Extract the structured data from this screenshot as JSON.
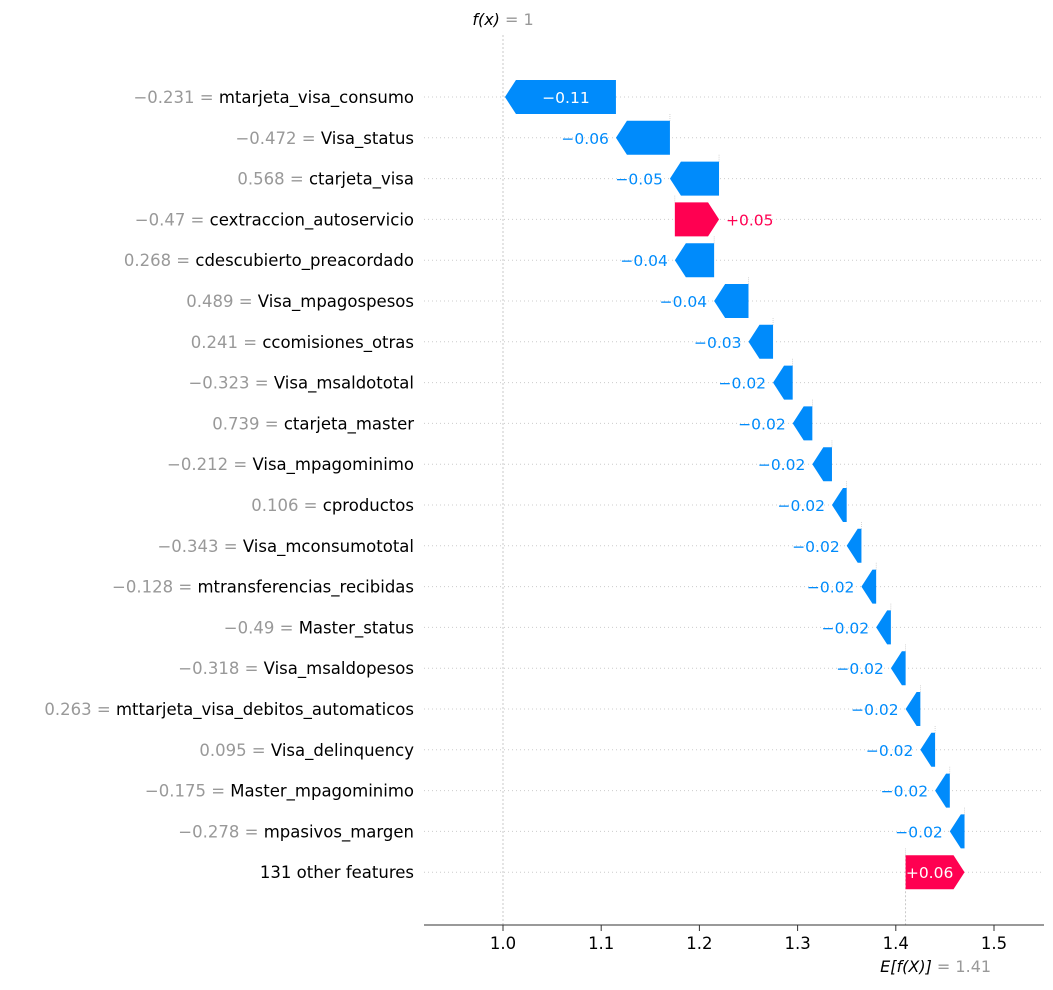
{
  "chart_data": {
    "type": "waterfall",
    "fx_label": "f(x)",
    "fx_value": "1",
    "ex_label": "E[f(X)]",
    "ex_value": "1.41",
    "base_value": 1.41,
    "final_value": 1.0,
    "xlim": [
      0.92,
      1.555
    ],
    "xticks": [
      "1.0",
      "1.1",
      "1.2",
      "1.3",
      "1.4",
      "1.5"
    ],
    "positive_color": "#ff0051",
    "negative_color": "#008bfb",
    "features": [
      {
        "value": "−0.231",
        "name": "mtarjeta_visa_consumo",
        "start": 1.115,
        "end": 1.002,
        "label": "−0.11"
      },
      {
        "value": "−0.472",
        "name": "Visa_status",
        "start": 1.17,
        "end": 1.115,
        "label": "−0.06"
      },
      {
        "value": "0.568",
        "name": "ctarjeta_visa",
        "start": 1.22,
        "end": 1.17,
        "label": "−0.05"
      },
      {
        "value": "−0.47",
        "name": "cextraccion_autoservicio",
        "start": 1.175,
        "end": 1.22,
        "label": "+0.05"
      },
      {
        "value": "0.268",
        "name": "cdescubierto_preacordado",
        "start": 1.215,
        "end": 1.175,
        "label": "−0.04"
      },
      {
        "value": "0.489",
        "name": "Visa_mpagospesos",
        "start": 1.25,
        "end": 1.215,
        "label": "−0.04"
      },
      {
        "value": "0.241",
        "name": "ccomisiones_otras",
        "start": 1.275,
        "end": 1.25,
        "label": "−0.03"
      },
      {
        "value": "−0.323",
        "name": "Visa_msaldototal",
        "start": 1.295,
        "end": 1.275,
        "label": "−0.02"
      },
      {
        "value": "0.739",
        "name": "ctarjeta_master",
        "start": 1.315,
        "end": 1.295,
        "label": "−0.02"
      },
      {
        "value": "−0.212",
        "name": "Visa_mpagominimo",
        "start": 1.335,
        "end": 1.315,
        "label": "−0.02"
      },
      {
        "value": "0.106",
        "name": "cproductos",
        "start": 1.35,
        "end": 1.335,
        "label": "−0.02"
      },
      {
        "value": "−0.343",
        "name": "Visa_mconsumototal",
        "start": 1.365,
        "end": 1.35,
        "label": "−0.02"
      },
      {
        "value": "−0.128",
        "name": "mtransferencias_recibidas",
        "start": 1.38,
        "end": 1.365,
        "label": "−0.02"
      },
      {
        "value": "−0.49",
        "name": "Master_status",
        "start": 1.395,
        "end": 1.38,
        "label": "−0.02"
      },
      {
        "value": "−0.318",
        "name": "Visa_msaldopesos",
        "start": 1.41,
        "end": 1.395,
        "label": "−0.02"
      },
      {
        "value": "0.263",
        "name": "mttarjeta_visa_debitos_automaticos",
        "start": 1.425,
        "end": 1.41,
        "label": "−0.02"
      },
      {
        "value": "0.095",
        "name": "Visa_delinquency",
        "start": 1.44,
        "end": 1.425,
        "label": "−0.02"
      },
      {
        "value": "−0.175",
        "name": "Master_mpagominimo",
        "start": 1.455,
        "end": 1.44,
        "label": "−0.02"
      },
      {
        "value": "−0.278",
        "name": "mpasivos_margen",
        "start": 1.47,
        "end": 1.455,
        "label": "−0.02"
      },
      {
        "value": "",
        "name": "131 other features",
        "start": 1.41,
        "end": 1.47,
        "label": "+0.06"
      }
    ]
  }
}
